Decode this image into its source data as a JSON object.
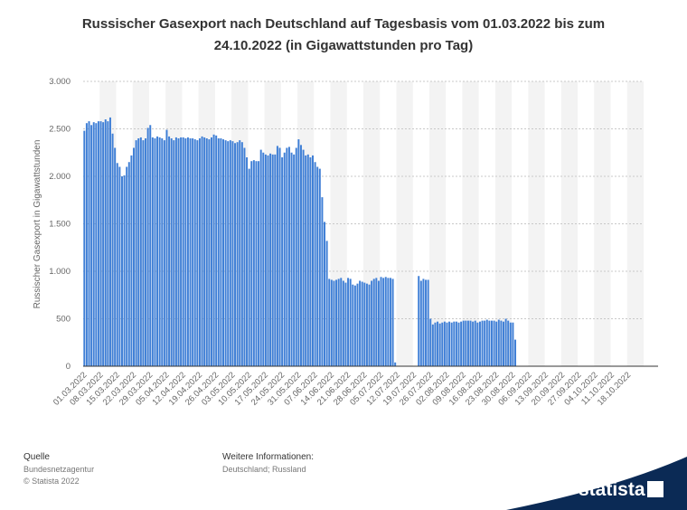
{
  "chart_data": {
    "type": "bar",
    "title": "Russischer Gasexport nach Deutschland auf Tagesbasis vom 01.03.2022 bis zum 24.10.2022 (in Gigawattstunden pro Tag)",
    "title_lines": [
      "Russischer Gasexport nach Deutschland auf Tagesbasis vom 01.03.2022 bis zum",
      "24.10.2022 (in Gigawattstunden pro Tag)"
    ],
    "y_label": "Russischer Gasexport in Gigawattstunden",
    "color": "#3f7fd6",
    "ylim": [
      0,
      3000
    ],
    "yticks": [
      0,
      500,
      {
        "value": 1000,
        "label": "1.000"
      },
      {
        "value": 1500,
        "label": "1.500"
      },
      {
        "value": 2000,
        "label": "2.000"
      },
      {
        "value": 2500,
        "label": "2.500"
      },
      {
        "value": 3000,
        "label": "3.000"
      }
    ],
    "grid": true,
    "categories": [
      "01.03.2022",
      null,
      null,
      null,
      null,
      null,
      null,
      "08.03.2022",
      null,
      null,
      null,
      null,
      null,
      null,
      "15.03.2022",
      null,
      null,
      null,
      null,
      null,
      null,
      "22.03.2022",
      null,
      null,
      null,
      null,
      null,
      null,
      "29.03.2022",
      null,
      null,
      null,
      null,
      null,
      null,
      "05.04.2022",
      null,
      null,
      null,
      null,
      null,
      null,
      "12.04.2022",
      null,
      null,
      null,
      null,
      null,
      null,
      "19.04.2022",
      null,
      null,
      null,
      null,
      null,
      null,
      "26.04.2022",
      null,
      null,
      null,
      null,
      null,
      null,
      "03.05.2022",
      null,
      null,
      null,
      null,
      null,
      null,
      "10.05.2022",
      null,
      null,
      null,
      null,
      null,
      null,
      "17.05.2022",
      null,
      null,
      null,
      null,
      null,
      null,
      "24.05.2022",
      null,
      null,
      null,
      null,
      null,
      null,
      "31.05.2022",
      null,
      null,
      null,
      null,
      null,
      null,
      "07.06.2022",
      null,
      null,
      null,
      null,
      null,
      null,
      "14.06.2022",
      null,
      null,
      null,
      null,
      null,
      null,
      "21.06.2022",
      null,
      null,
      null,
      null,
      null,
      null,
      "28.06.2022",
      null,
      null,
      null,
      null,
      null,
      null,
      "05.07.2022",
      null,
      null,
      null,
      null,
      null,
      null,
      "12.07.2022",
      null,
      null,
      null,
      null,
      null,
      null,
      "19.07.2022",
      null,
      null,
      null,
      null,
      null,
      null,
      "26.07.2022",
      null,
      null,
      null,
      null,
      null,
      null,
      "02.08.2022",
      null,
      null,
      null,
      null,
      null,
      null,
      "09.08.2022",
      null,
      null,
      null,
      null,
      null,
      null,
      "16.08.2022",
      null,
      null,
      null,
      null,
      null,
      null,
      "23.08.2022",
      null,
      null,
      null,
      null,
      null,
      null,
      "30.08.2022",
      null,
      null,
      null,
      null,
      null,
      null,
      "06.09.2022",
      null,
      null,
      null,
      null,
      null,
      null,
      "13.09.2022",
      null,
      null,
      null,
      null,
      null,
      null,
      "20.09.2022",
      null,
      null,
      null,
      null,
      null,
      null,
      "27.09.2022",
      null,
      null,
      null,
      null,
      null,
      null,
      "04.10.2022",
      null,
      null,
      null,
      null,
      null,
      null,
      "11.10.2022",
      null,
      null,
      null,
      null,
      null,
      null,
      "18.10.2022",
      null,
      null,
      null,
      null,
      null,
      null
    ],
    "values": [
      2480,
      2560,
      2580,
      2540,
      2570,
      2560,
      2580,
      2580,
      2570,
      2600,
      2580,
      2620,
      2450,
      2300,
      2140,
      2100,
      2000,
      2010,
      2100,
      2150,
      2220,
      2300,
      2380,
      2400,
      2410,
      2380,
      2400,
      2510,
      2540,
      2410,
      2400,
      2420,
      2410,
      2400,
      2380,
      2490,
      2420,
      2400,
      2380,
      2410,
      2400,
      2410,
      2410,
      2400,
      2410,
      2400,
      2400,
      2390,
      2380,
      2400,
      2420,
      2410,
      2400,
      2390,
      2410,
      2440,
      2430,
      2400,
      2400,
      2390,
      2380,
      2370,
      2380,
      2370,
      2350,
      2360,
      2380,
      2360,
      2300,
      2200,
      2080,
      2160,
      2170,
      2160,
      2160,
      2280,
      2250,
      2230,
      2220,
      2240,
      2230,
      2230,
      2320,
      2300,
      2200,
      2250,
      2300,
      2310,
      2250,
      2230,
      2300,
      2390,
      2330,
      2280,
      2220,
      2230,
      2200,
      2220,
      2150,
      2100,
      2080,
      1780,
      1520,
      1320,
      920,
      910,
      900,
      910,
      920,
      930,
      900,
      880,
      930,
      920,
      860,
      850,
      870,
      900,
      890,
      880,
      870,
      860,
      900,
      920,
      930,
      900,
      940,
      930,
      940,
      930,
      930,
      920,
      40,
      0,
      0,
      0,
      0,
      0,
      0,
      0,
      0,
      0,
      950,
      900,
      920,
      910,
      910,
      500,
      440,
      460,
      470,
      450,
      460,
      470,
      460,
      470,
      460,
      470,
      470,
      460,
      470,
      480,
      480,
      480,
      480,
      470,
      480,
      460,
      470,
      480,
      480,
      490,
      480,
      480,
      480,
      470,
      490,
      480,
      470,
      500,
      480,
      460,
      460,
      280,
      0,
      0,
      0,
      0,
      0,
      0,
      0,
      0,
      0,
      0,
      0,
      0,
      0,
      0,
      0,
      0,
      0,
      0,
      0,
      0,
      0,
      0,
      0,
      0,
      0,
      0,
      0,
      0,
      0,
      0,
      0,
      0,
      0,
      0,
      0,
      0,
      0,
      0,
      0,
      0,
      0,
      0,
      0,
      0,
      0,
      0,
      0,
      0,
      0,
      0,
      0,
      0,
      0,
      0
    ]
  },
  "footer": {
    "source_heading": "Quelle",
    "source": "Bundesnetzagentur",
    "copyright": "© Statista 2022",
    "info_heading": "Weitere Informationen:",
    "info": "Deutschland; Russland",
    "brand": "statista"
  }
}
